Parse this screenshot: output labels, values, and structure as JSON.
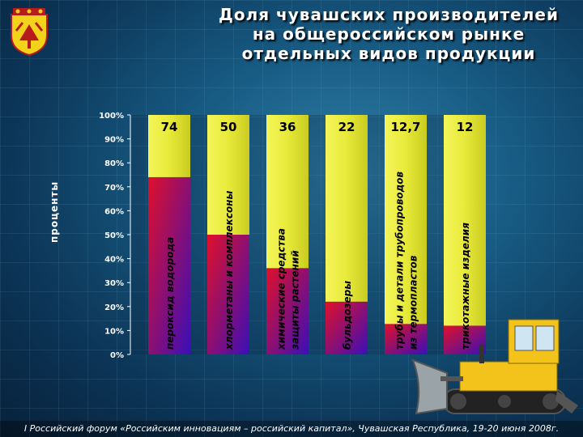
{
  "title_lines": [
    "Доля чувашских производителей",
    "на общероссийском рынке",
    "отдельных видов продукции"
  ],
  "footer": "I Российский форум «Российским инновациям – российский капитал», Чувашская Республика, 19-20 июня 2008г.",
  "colors": {
    "bar_top": "#e8ea3a",
    "bar_bottom_start": "#e0102a",
    "bar_bottom_end": "#3a0fb8"
  },
  "emblem_icon": "chuvash-coat-of-arms-icon",
  "vehicle_icon": "bulldozer-icon",
  "chart_data": {
    "type": "bar",
    "stacked_to_100": true,
    "ylabel": "проценты",
    "ylim": [
      0,
      100
    ],
    "yticks": [
      "0%",
      "10%",
      "20%",
      "30%",
      "40%",
      "50%",
      "60%",
      "70%",
      "80%",
      "90%",
      "100%"
    ],
    "grid": false,
    "categories": [
      "пероксид водорода",
      "хлорметаны и комплексоны",
      "химические средства защиты растений",
      "бульдозеры",
      "трубы и детали трубопроводов из термопластов",
      "трикотажные изделия"
    ],
    "category_lines": [
      [
        "пероксид водорода"
      ],
      [
        "хлорметаны и комплексоны"
      ],
      [
        "химические средства",
        "защиты растений"
      ],
      [
        "бульдозеры"
      ],
      [
        "трубы и детали трубопроводов",
        "из термопластов"
      ],
      [
        "трикотажные изделия"
      ]
    ],
    "value_labels": [
      "74",
      "50",
      "36",
      "22",
      "12,7",
      "12"
    ],
    "values": [
      74,
      50,
      36,
      22,
      12.7,
      12
    ]
  }
}
